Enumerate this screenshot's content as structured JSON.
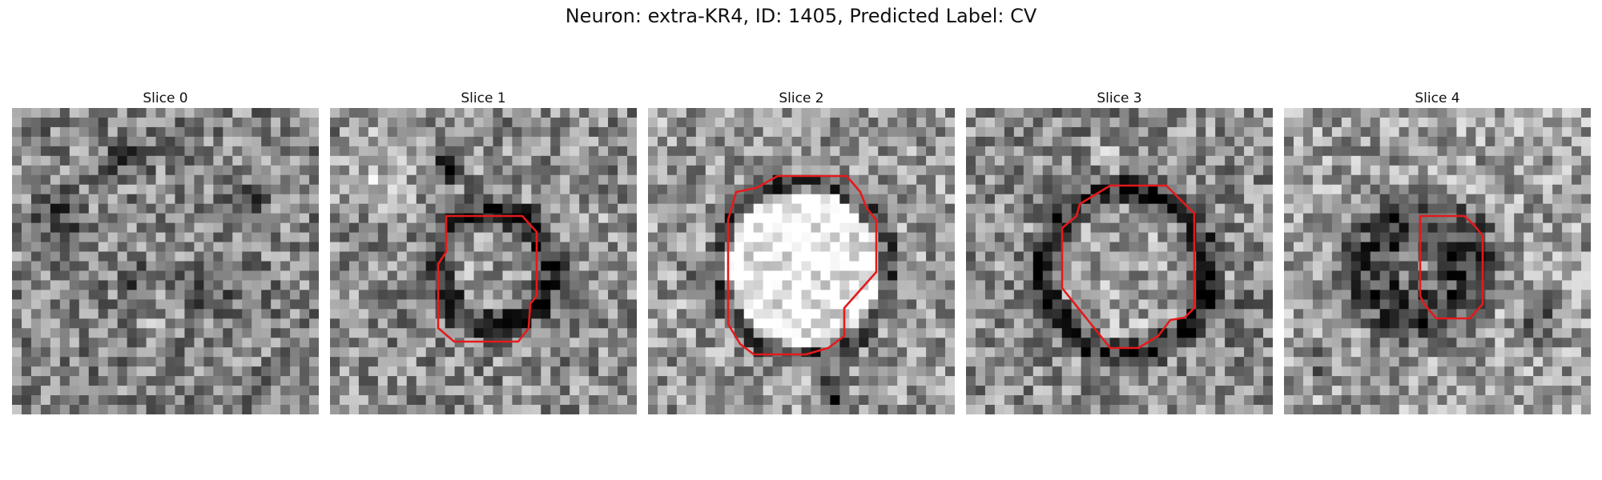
{
  "figure": {
    "title": "Neuron: extra-KR4, ID: 1405, Predicted Label: CV",
    "overlay_color": "#e41a1c"
  },
  "slices": [
    {
      "label": "Slice 0",
      "has_contour": false,
      "brightness": 0.52,
      "feature": "speckled texture with dark blotches"
    },
    {
      "label": "Slice 1",
      "has_contour": true,
      "brightness": 0.55,
      "feature": "small grey region ringed by dark membrane"
    },
    {
      "label": "Slice 2",
      "has_contour": true,
      "brightness": 0.6,
      "feature": "bright round region ringed by dark membrane"
    },
    {
      "label": "Slice 3",
      "has_contour": true,
      "brightness": 0.55,
      "feature": "mottled round region ringed by dark membrane"
    },
    {
      "label": "Slice 4",
      "has_contour": true,
      "brightness": 0.62,
      "feature": "dark region on light background"
    }
  ]
}
